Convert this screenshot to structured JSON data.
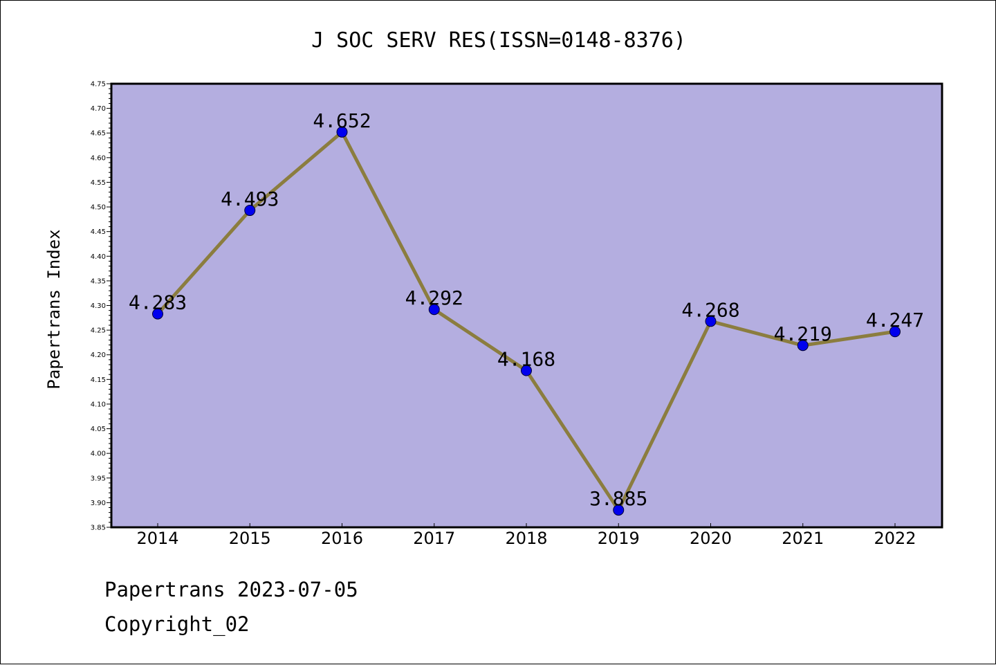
{
  "chart_data": {
    "type": "line",
    "title": "J SOC SERV RES(ISSN=0148-8376)",
    "xlabel": "",
    "ylabel": "Papertrans Index",
    "categories": [
      "2014",
      "2015",
      "2016",
      "2017",
      "2018",
      "2019",
      "2020",
      "2021",
      "2022"
    ],
    "series": [
      {
        "values": [
          4.283,
          4.493,
          4.652,
          4.292,
          4.168,
          3.885,
          4.268,
          4.219,
          4.247
        ]
      }
    ],
    "data_labels": [
      "4.283",
      "4.493",
      "4.652",
      "4.292",
      "4.168",
      "3.885",
      "4.268",
      "4.219",
      "4.247"
    ],
    "ylim": [
      3.85,
      4.75
    ],
    "yticks": [
      "3.85",
      "3.90",
      "3.95",
      "4.00",
      "4.05",
      "4.10",
      "4.15",
      "4.20",
      "4.25",
      "4.30",
      "4.35",
      "4.40",
      "4.45",
      "4.50",
      "4.55",
      "4.60",
      "4.65",
      "4.70",
      "4.75"
    ],
    "grid": false,
    "legend": "none",
    "colors": {
      "plot_background": "#b4aee0",
      "line": "#8b7d3f",
      "marker": "#0000ee"
    }
  },
  "footer": {
    "line1": "Papertrans 2023-07-05",
    "line2": "Copyright_02"
  }
}
